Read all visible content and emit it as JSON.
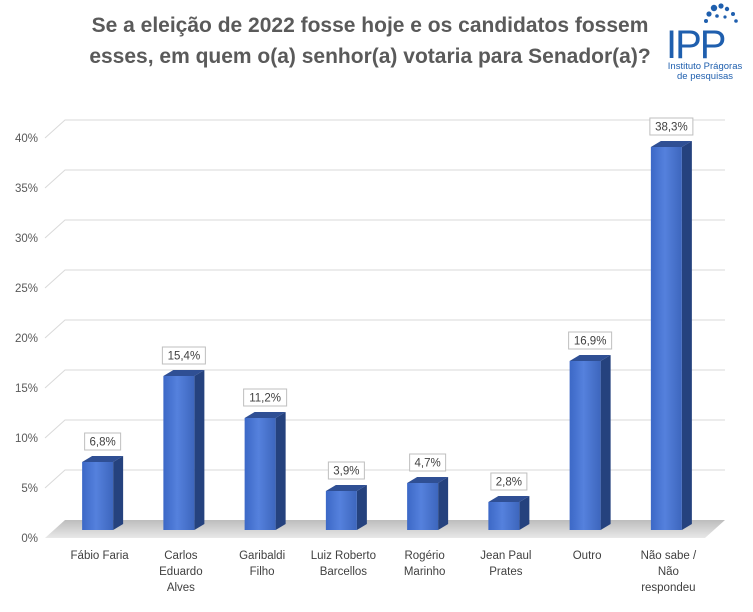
{
  "title_lines": [
    "Se a eleição de 2022 fosse hoje e os candidatos fossem",
    "esses, em quem o(a) senhor(a) votaria para Senador(a)?"
  ],
  "logo": {
    "mark": "IPP",
    "name_line1": "Instituto Prágoras",
    "name_line2": "de pesquisas",
    "color": "#1f5fae"
  },
  "chart_data": {
    "type": "bar",
    "title": "Se a eleição de 2022 fosse hoje e os candidatos fossem esses, em quem o(a) senhor(a) votaria para Senador(a)?",
    "categories": [
      "Fábio Faria",
      "Carlos Eduardo Alves",
      "Garibaldi Filho",
      "Luiz Roberto Barcellos",
      "Rogério Marinho",
      "Jean Paul Prates",
      "Outro",
      "Não sabe / Não respondeu"
    ],
    "category_lines": [
      [
        "Fábio Faria"
      ],
      [
        "Carlos",
        "Eduardo",
        "Alves"
      ],
      [
        "Garibaldi",
        "Filho"
      ],
      [
        "Luiz Roberto",
        "Barcellos"
      ],
      [
        "Rogério",
        "Marinho"
      ],
      [
        "Jean Paul",
        "Prates"
      ],
      [
        "Outro"
      ],
      [
        "Não sabe /",
        "Não",
        "respondeu"
      ]
    ],
    "values": [
      6.8,
      15.4,
      11.2,
      3.9,
      4.7,
      2.8,
      16.9,
      38.3
    ],
    "value_labels": [
      "6,8%",
      "15,4%",
      "11,2%",
      "3,9%",
      "4,7%",
      "2,8%",
      "16,9%",
      "38,3%"
    ],
    "ylim": [
      0,
      40
    ],
    "yticks": [
      0,
      5,
      10,
      15,
      20,
      25,
      30,
      35,
      40
    ],
    "ytick_labels": [
      "0%",
      "5%",
      "10%",
      "15%",
      "20%",
      "25%",
      "30%",
      "35%",
      "40%"
    ],
    "xlabel": "",
    "ylabel": "",
    "grid": true,
    "style": "3d-column",
    "bar_color": "#4472c4"
  }
}
